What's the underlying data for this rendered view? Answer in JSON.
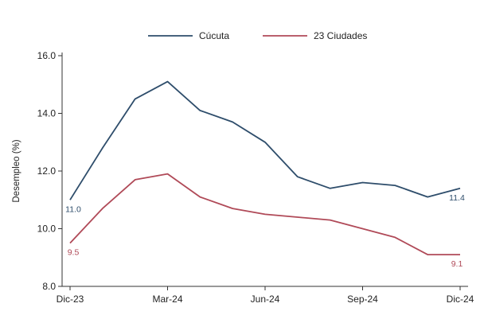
{
  "chart_data": {
    "type": "line",
    "x": [
      "Dic-23",
      "Ene-24",
      "Feb-24",
      "Mar-24",
      "Abr-24",
      "May-24",
      "Jun-24",
      "Jul-24",
      "Ago-24",
      "Sep-24",
      "Oct-24",
      "Nov-24",
      "Dic-24"
    ],
    "x_tick_labels": [
      "Dic-23",
      "Mar-24",
      "Jun-24",
      "Sep-24",
      "Dic-24"
    ],
    "series": [
      {
        "name": "Cúcuta",
        "color": "#2e4d6b",
        "values": [
          11.0,
          12.8,
          14.5,
          15.1,
          14.1,
          13.7,
          13.0,
          11.8,
          11.4,
          11.6,
          11.5,
          11.1,
          11.4
        ],
        "labels": {
          "start": "11.0",
          "end": "11.4"
        }
      },
      {
        "name": "23 Ciudades",
        "color": "#b04a58",
        "values": [
          9.5,
          10.7,
          11.7,
          11.9,
          11.1,
          10.7,
          10.5,
          10.4,
          10.3,
          10.0,
          9.7,
          9.1,
          9.1
        ],
        "labels": {
          "start": "9.5",
          "end": "9.1"
        }
      }
    ],
    "title": "",
    "xlabel": "",
    "ylabel": "Desempleo (%)",
    "ylim": [
      8.0,
      16.0
    ],
    "yticks": [
      "8.0",
      "10.0",
      "12.0",
      "14.0",
      "16.0"
    ],
    "legend": "top",
    "grid": false
  }
}
